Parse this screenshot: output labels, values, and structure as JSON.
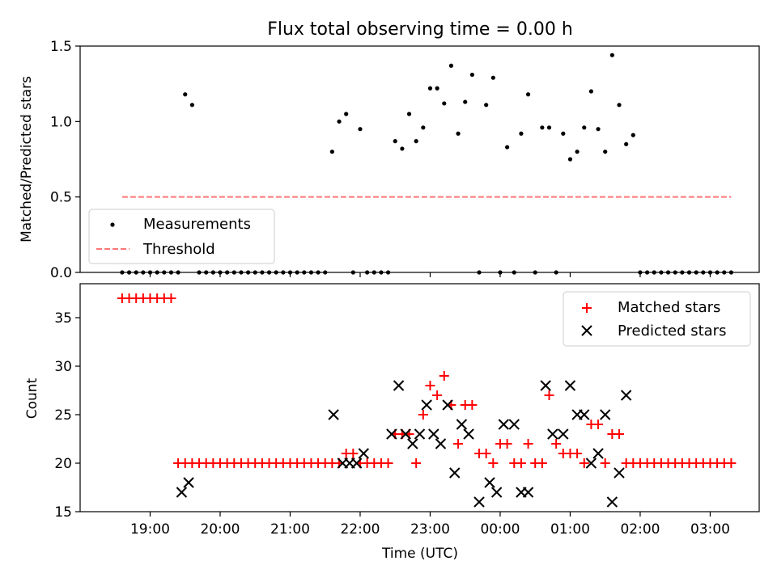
{
  "title": "Flux total observing time = 0.00 h",
  "chart_data": [
    {
      "type": "scatter",
      "panel": "top",
      "ylabel": "Matched/Predicted stars",
      "ylim": [
        0,
        1.5
      ],
      "yticks": [
        "0.0",
        "0.5",
        "1.0",
        "1.5"
      ],
      "xlim_hours": [
        18.0,
        27.7
      ],
      "legend_position": "lower-left",
      "series": [
        {
          "name": "Measurements",
          "kind": "points",
          "color": "#000000",
          "x": [
            18.6,
            18.7,
            18.8,
            18.9,
            19.0,
            19.1,
            19.2,
            19.3,
            19.4,
            19.5,
            19.6,
            19.7,
            19.8,
            19.9,
            20.0,
            20.1,
            20.2,
            20.3,
            20.4,
            20.5,
            20.6,
            20.7,
            20.8,
            20.9,
            21.0,
            21.1,
            21.2,
            21.3,
            21.4,
            21.5,
            21.6,
            21.7,
            21.8,
            21.9,
            22.0,
            22.1,
            22.2,
            22.3,
            22.4,
            22.5,
            22.6,
            22.7,
            22.8,
            22.9,
            23.0,
            23.1,
            23.2,
            23.3,
            23.4,
            23.5,
            23.6,
            23.7,
            23.8,
            23.9,
            24.0,
            24.1,
            24.2,
            24.3,
            24.4,
            24.5,
            24.6,
            24.7,
            24.8,
            24.9,
            25.0,
            25.1,
            25.2,
            25.3,
            25.4,
            25.5,
            25.6,
            25.7,
            25.8,
            25.9,
            26.0,
            26.1,
            26.2,
            26.3,
            26.4,
            26.5,
            26.6,
            26.7,
            26.8,
            26.9,
            27.0,
            27.1,
            27.2,
            27.3
          ],
          "y": [
            0,
            0,
            0,
            0,
            0,
            0,
            0,
            0,
            0,
            1.18,
            1.11,
            0,
            0,
            0,
            0,
            0,
            0,
            0,
            0,
            0,
            0,
            0,
            0,
            0,
            0,
            0,
            0,
            0,
            0,
            0,
            0.8,
            1.0,
            1.05,
            0,
            0.95,
            0,
            0,
            0,
            0,
            0.87,
            0.82,
            1.05,
            0.87,
            0.96,
            1.22,
            1.22,
            1.12,
            1.37,
            0.92,
            1.13,
            1.31,
            0,
            1.11,
            1.29,
            0,
            0.83,
            0,
            0.92,
            1.18,
            0,
            0.96,
            0.96,
            0,
            0.92,
            0.75,
            0.8,
            0.96,
            1.2,
            0.95,
            0.8,
            1.44,
            1.11,
            0.85,
            0.91,
            0,
            0,
            0,
            0,
            0,
            0,
            0,
            0,
            0,
            0,
            0,
            0,
            0,
            0
          ]
        },
        {
          "name": "Threshold",
          "kind": "dashed-line",
          "color": "#ff7777",
          "x": [
            18.6,
            27.3
          ],
          "y": [
            0.5,
            0.5
          ]
        }
      ]
    },
    {
      "type": "scatter",
      "panel": "bottom",
      "ylabel": "Count",
      "xlabel": "Time (UTC)",
      "ylim": [
        15,
        38.5
      ],
      "yticks": [
        "15",
        "20",
        "25",
        "30",
        "35"
      ],
      "xlim_hours": [
        18.0,
        27.7
      ],
      "xticks": [
        {
          "hour": 19,
          "label": "19:00"
        },
        {
          "hour": 20,
          "label": "20:00"
        },
        {
          "hour": 21,
          "label": "21:00"
        },
        {
          "hour": 22,
          "label": "22:00"
        },
        {
          "hour": 23,
          "label": "23:00"
        },
        {
          "hour": 24,
          "label": "00:00"
        },
        {
          "hour": 25,
          "label": "01:00"
        },
        {
          "hour": 26,
          "label": "02:00"
        },
        {
          "hour": 27,
          "label": "03:00"
        }
      ],
      "legend_position": "upper-right",
      "series": [
        {
          "name": "Matched stars",
          "marker": "plus",
          "color": "#ff0000",
          "x": [
            18.6,
            18.7,
            18.8,
            18.9,
            19.0,
            19.1,
            19.2,
            19.3,
            19.4,
            19.5,
            19.6,
            19.7,
            19.8,
            19.9,
            20.0,
            20.1,
            20.2,
            20.3,
            20.4,
            20.5,
            20.6,
            20.7,
            20.8,
            20.9,
            21.0,
            21.1,
            21.2,
            21.3,
            21.4,
            21.5,
            21.6,
            21.7,
            21.8,
            21.9,
            22.0,
            22.1,
            22.2,
            22.3,
            22.4,
            22.5,
            22.6,
            22.7,
            22.8,
            22.9,
            23.0,
            23.1,
            23.2,
            23.3,
            23.4,
            23.5,
            23.6,
            23.7,
            23.8,
            23.9,
            24.0,
            24.1,
            24.2,
            24.3,
            24.4,
            24.5,
            24.6,
            24.7,
            24.8,
            24.9,
            25.0,
            25.1,
            25.2,
            25.3,
            25.4,
            25.5,
            25.6,
            25.7,
            25.8,
            25.9,
            26.0,
            26.1,
            26.2,
            26.3,
            26.4,
            26.5,
            26.6,
            26.7,
            26.8,
            26.9,
            27.0,
            27.1,
            27.2,
            27.3
          ],
          "y": [
            37,
            37,
            37,
            37,
            37,
            37,
            37,
            37,
            20,
            20,
            20,
            20,
            20,
            20,
            20,
            20,
            20,
            20,
            20,
            20,
            20,
            20,
            20,
            20,
            20,
            20,
            20,
            20,
            20,
            20,
            20,
            20,
            21,
            21,
            20,
            20,
            20,
            20,
            20,
            23,
            23,
            23,
            20,
            25,
            28,
            27,
            29,
            26,
            22,
            26,
            26,
            21,
            21,
            20,
            22,
            22,
            20,
            20,
            22,
            20,
            20,
            27,
            22,
            21,
            21,
            21,
            20,
            24,
            24,
            20,
            23,
            23,
            20,
            20,
            20,
            20,
            20,
            20,
            20,
            20,
            20,
            20,
            20,
            20,
            20,
            20,
            20,
            20
          ]
        },
        {
          "name": "Predicted stars",
          "marker": "x",
          "color": "#000000",
          "x": [
            19.45,
            19.55,
            21.62,
            21.75,
            21.85,
            21.95,
            22.05,
            22.45,
            22.55,
            22.65,
            22.75,
            22.85,
            22.95,
            23.05,
            23.15,
            23.25,
            23.35,
            23.45,
            23.55,
            23.7,
            23.85,
            23.95,
            24.05,
            24.2,
            24.3,
            24.4,
            24.65,
            24.75,
            24.9,
            25.0,
            25.1,
            25.2,
            25.3,
            25.4,
            25.5,
            25.6,
            25.7,
            25.8
          ],
          "y": [
            17,
            18,
            25,
            20,
            20,
            20,
            21,
            23,
            28,
            23,
            22,
            23,
            26,
            23,
            22,
            26,
            19,
            24,
            23,
            16,
            18,
            17,
            24,
            24,
            17,
            17,
            28,
            23,
            23,
            28,
            25,
            25,
            20,
            21,
            25,
            16,
            19,
            27
          ]
        }
      ]
    }
  ]
}
